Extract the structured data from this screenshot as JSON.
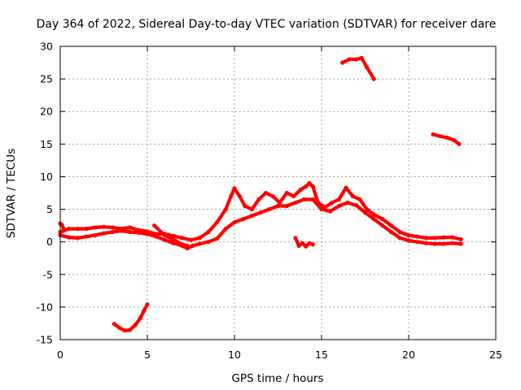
{
  "chart_data": {
    "type": "scatter",
    "title": "Day 364 of 2022, Sidereal Day-to-day VTEC variation (SDTVAR) for receiver dare",
    "xlabel": "GPS time / hours",
    "ylabel": "SDTVAR / TECUs",
    "xlim": [
      0,
      25
    ],
    "ylim": [
      -15,
      30
    ],
    "xticks": [
      0,
      5,
      10,
      15,
      20,
      25
    ],
    "yticks": [
      -15,
      -10,
      -5,
      0,
      5,
      10,
      15,
      20,
      25,
      30
    ],
    "xtick_labels": [
      "0",
      "5",
      "10",
      "15",
      "20",
      "25"
    ],
    "ytick_labels": [
      "-15",
      "-10",
      "-5",
      "0",
      "5",
      "10",
      "15",
      "20",
      "25",
      "30"
    ],
    "grid": true,
    "color": "#ff0000",
    "series": [
      {
        "name": "main-upper",
        "x": [
          0.0,
          0.5,
          1.0,
          1.5,
          2.0,
          2.5,
          3.0,
          3.5,
          4.0,
          4.5,
          5.0,
          5.5,
          6.0,
          6.5,
          7.0,
          7.5,
          8.0,
          8.5,
          9.0,
          9.5,
          9.8,
          10.0,
          10.3,
          10.6,
          11.0,
          11.4,
          11.8,
          12.2,
          12.6,
          13.0,
          13.4,
          13.8,
          14.1,
          14.3,
          14.5,
          14.8,
          15.2,
          15.6,
          16.0,
          16.4,
          16.8,
          17.2,
          17.6,
          18.0,
          18.5,
          19.0,
          19.5,
          20.0,
          20.5,
          21.0,
          21.5,
          22.0,
          22.5,
          23.0
        ],
        "y": [
          1.5,
          2.0,
          2.0,
          2.0,
          2.2,
          2.3,
          2.2,
          2.0,
          2.2,
          1.8,
          1.6,
          1.2,
          1.2,
          0.9,
          0.6,
          0.3,
          0.6,
          1.5,
          3.0,
          5.0,
          7.0,
          8.2,
          7.0,
          5.5,
          5.0,
          6.5,
          7.5,
          7.0,
          6.0,
          7.5,
          7.0,
          8.0,
          8.5,
          9.0,
          8.5,
          6.0,
          5.3,
          6.0,
          6.5,
          8.3,
          7.0,
          6.5,
          5.0,
          4.2,
          3.5,
          2.5,
          1.5,
          1.0,
          0.8,
          0.6,
          0.6,
          0.7,
          0.7,
          0.4
        ]
      },
      {
        "name": "main-lower",
        "x": [
          0.0,
          0.5,
          1.0,
          1.5,
          2.0,
          2.5,
          3.0,
          3.5,
          4.0,
          4.5,
          5.0,
          5.5,
          6.0,
          6.5,
          7.0,
          7.3,
          7.6,
          8.0,
          8.5,
          9.0,
          9.5,
          10.0,
          10.5,
          11.0,
          11.5,
          12.0,
          12.5,
          13.0,
          13.5,
          14.0,
          14.5,
          15.0,
          15.5,
          16.0,
          16.5,
          17.0,
          17.5,
          18.0,
          18.5,
          19.0,
          19.5,
          20.0,
          20.5,
          21.0,
          21.5,
          22.0,
          22.5,
          23.0
        ],
        "y": [
          1.0,
          0.7,
          0.6,
          0.8,
          1.0,
          1.3,
          1.5,
          1.7,
          1.5,
          1.4,
          1.2,
          0.8,
          0.3,
          -0.2,
          -0.6,
          -1.0,
          -0.6,
          -0.3,
          0.0,
          0.5,
          2.0,
          3.0,
          3.5,
          4.0,
          4.5,
          5.0,
          5.5,
          5.5,
          6.0,
          6.5,
          6.5,
          5.0,
          4.7,
          5.5,
          6.0,
          5.6,
          4.5,
          3.5,
          2.5,
          1.5,
          0.6,
          0.2,
          0.0,
          -0.2,
          -0.3,
          -0.3,
          -0.2,
          -0.3
        ]
      },
      {
        "name": "short-dip",
        "x": [
          5.4,
          6.0,
          6.6,
          7.0,
          7.3
        ],
        "y": [
          2.5,
          1.0,
          0.2,
          -0.4,
          -0.6
        ]
      },
      {
        "name": "lower-left-arc",
        "x": [
          3.1,
          3.4,
          3.7,
          4.0,
          4.3,
          4.6,
          4.8,
          5.0
        ],
        "y": [
          -12.6,
          -13.2,
          -13.6,
          -13.5,
          -12.8,
          -11.7,
          -10.6,
          -9.6
        ]
      },
      {
        "name": "small-segment-14h",
        "x": [
          13.5,
          13.7,
          13.9,
          14.1,
          14.3,
          14.5
        ],
        "y": [
          0.6,
          -0.6,
          -0.2,
          -0.7,
          -0.2,
          -0.4
        ]
      },
      {
        "name": "upper-segment-16h",
        "x": [
          16.2,
          16.6,
          17.0,
          17.3,
          17.6,
          18.0
        ],
        "y": [
          27.5,
          28.0,
          28.0,
          28.2,
          26.8,
          25.0
        ]
      },
      {
        "name": "upper-segment-21h",
        "x": [
          21.4,
          21.8,
          22.2,
          22.6,
          22.9
        ],
        "y": [
          16.5,
          16.2,
          16.0,
          15.6,
          15.0
        ]
      },
      {
        "name": "spike-0h",
        "x": [
          0.0,
          0.1,
          0.2
        ],
        "y": [
          2.8,
          2.6,
          2.0
        ]
      }
    ]
  }
}
